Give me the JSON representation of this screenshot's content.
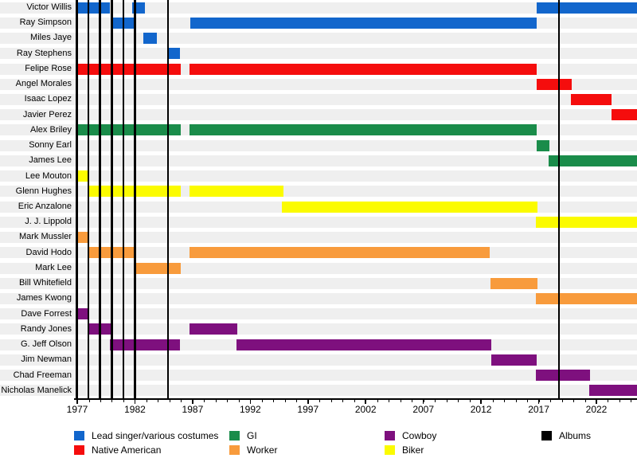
{
  "chart_data": {
    "type": "timeline",
    "title": "",
    "x_axis": {
      "range": [
        1976.86,
        2025.52
      ],
      "tick_labels": [
        "1977",
        "1982",
        "1987",
        "1992",
        "1997",
        "2002",
        "2007",
        "2012",
        "2017",
        "2022"
      ],
      "ticks": [
        1977,
        1982,
        1987,
        1992,
        1997,
        2002,
        2007,
        2012,
        2017,
        2022
      ],
      "minor_tick_interval": 1
    },
    "roles": {
      "lead": {
        "label": "Lead singer/various costumes",
        "color": "#1266cc"
      },
      "native_american": {
        "label": "Native American",
        "color": "#f50d0d"
      },
      "gi": {
        "label": "GI",
        "color": "#1a8c4a"
      },
      "worker": {
        "label": "Worker",
        "color": "#f89b3c"
      },
      "cowboy": {
        "label": "Cowboy",
        "color": "#7e107e"
      },
      "biker": {
        "label": "Biker",
        "color": "#fbfb00"
      },
      "albums": {
        "label": "Albums",
        "color": "#000000"
      }
    },
    "members": [
      {
        "name": "Victor Willis",
        "role": "lead",
        "segments": [
          [
            1976.9,
            1979.85
          ],
          [
            1981.75,
            1982.85
          ],
          [
            2016.8,
            2025.52
          ]
        ]
      },
      {
        "name": "Ray Simpson",
        "role": "lead",
        "segments": [
          [
            1979.9,
            1981.9
          ],
          [
            1986.8,
            2016.8
          ]
        ]
      },
      {
        "name": "Miles Jaye",
        "role": "lead",
        "segments": [
          [
            1982.75,
            1983.9
          ]
        ]
      },
      {
        "name": "Ray Stephens",
        "role": "lead",
        "segments": [
          [
            1984.95,
            1985.9
          ]
        ]
      },
      {
        "name": "Felipe Rose",
        "role": "native_american",
        "segments": [
          [
            1976.9,
            1985.95
          ],
          [
            1986.75,
            2016.8
          ]
        ]
      },
      {
        "name": "Angel Morales",
        "role": "native_american",
        "segments": [
          [
            2016.8,
            2019.85
          ]
        ]
      },
      {
        "name": "Isaac Lopez",
        "role": "native_american",
        "segments": [
          [
            2019.8,
            2023.3
          ]
        ]
      },
      {
        "name": "Javier Perez",
        "role": "native_american",
        "segments": [
          [
            2023.3,
            2025.52
          ]
        ]
      },
      {
        "name": "Alex Briley",
        "role": "gi",
        "segments": [
          [
            1976.9,
            1985.95
          ],
          [
            1986.75,
            2016.8
          ]
        ]
      },
      {
        "name": "Sonny Earl",
        "role": "gi",
        "segments": [
          [
            2016.8,
            2017.9
          ]
        ]
      },
      {
        "name": "James Lee",
        "role": "gi",
        "segments": [
          [
            2017.85,
            2025.52
          ]
        ]
      },
      {
        "name": "Lee Mouton",
        "role": "biker",
        "segments": [
          [
            1976.9,
            1977.9
          ]
        ]
      },
      {
        "name": "Glenn Hughes",
        "role": "biker",
        "segments": [
          [
            1977.9,
            1985.95
          ],
          [
            1986.75,
            1994.85
          ]
        ]
      },
      {
        "name": "Eric Anzalone",
        "role": "biker",
        "segments": [
          [
            1994.75,
            2016.9
          ]
        ]
      },
      {
        "name": "J. J. Lippold",
        "role": "biker",
        "segments": [
          [
            2016.75,
            2025.52
          ]
        ]
      },
      {
        "name": "Mark Mussler",
        "role": "worker",
        "segments": [
          [
            1976.9,
            1977.9
          ]
        ]
      },
      {
        "name": "David Hodo",
        "role": "worker",
        "segments": [
          [
            1977.9,
            1981.9
          ],
          [
            1986.75,
            2012.75
          ]
        ]
      },
      {
        "name": "Mark Lee",
        "role": "worker",
        "segments": [
          [
            1981.9,
            1985.95
          ]
        ]
      },
      {
        "name": "Bill Whitefield",
        "role": "worker",
        "segments": [
          [
            2012.8,
            2016.9
          ]
        ]
      },
      {
        "name": "James Kwong",
        "role": "worker",
        "segments": [
          [
            2016.75,
            2025.52
          ]
        ]
      },
      {
        "name": "Dave Forrest",
        "role": "cowboy",
        "segments": [
          [
            1976.9,
            1977.9
          ]
        ]
      },
      {
        "name": "Randy Jones",
        "role": "cowboy",
        "segments": [
          [
            1977.9,
            1979.9
          ],
          [
            1986.75,
            1990.85
          ]
        ]
      },
      {
        "name": "G. Jeff Olson",
        "role": "cowboy",
        "segments": [
          [
            1979.85,
            1985.9
          ],
          [
            1990.8,
            2012.9
          ]
        ]
      },
      {
        "name": "Jim Newman",
        "role": "cowboy",
        "segments": [
          [
            2012.9,
            2016.8
          ]
        ]
      },
      {
        "name": "Chad Freeman",
        "role": "cowboy",
        "segments": [
          [
            2016.75,
            2021.45
          ]
        ]
      },
      {
        "name": "Nicholas Manelick",
        "role": "cowboy",
        "segments": [
          [
            2021.4,
            2025.52
          ]
        ]
      }
    ],
    "album_release_years": [
      1977.0,
      1977.95,
      1978.95,
      1980.0,
      1981.0,
      1982.0,
      1984.85,
      2018.75
    ],
    "legend": {
      "columns": [
        [
          "lead",
          "native_american"
        ],
        [
          "gi",
          "worker"
        ],
        [
          "cowboy",
          "biker"
        ],
        [
          "albums"
        ]
      ]
    }
  }
}
